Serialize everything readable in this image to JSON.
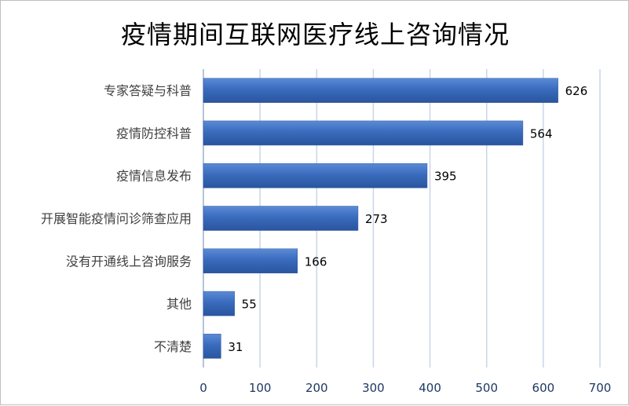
{
  "chart_data": {
    "type": "bar",
    "orientation": "horizontal",
    "title": "疫情期间互联网医疗线上咨询情况",
    "categories": [
      "专家答疑与科普",
      "疫情防控科普",
      "疫情信息发布",
      "开展智能疫情问诊筛查应用",
      "没有开通线上咨询服务",
      "其他",
      "不清楚"
    ],
    "values": [
      626,
      564,
      395,
      273,
      166,
      55,
      31
    ],
    "xlim": [
      0,
      700
    ],
    "xticks": [
      0,
      100,
      200,
      300,
      400,
      500,
      600,
      700
    ],
    "grid": true,
    "bar_color": "#3d6fc0"
  }
}
